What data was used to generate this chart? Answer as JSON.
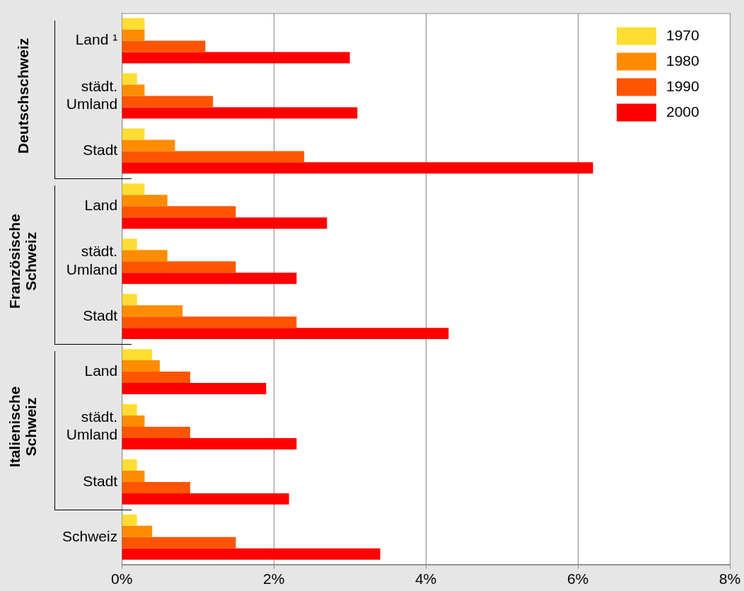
{
  "chart_data": {
    "type": "bar",
    "orientation": "horizontal",
    "categories": [
      "Land ¹",
      "städt.\nUmland",
      "Stadt",
      "Land",
      "städt.\nUmland",
      "Stadt",
      "Land",
      "städt.\nUmland",
      "Stadt",
      "Schweiz"
    ],
    "series": [
      {
        "name": "1970",
        "color": "#ffdd33",
        "values": [
          0.3,
          0.2,
          0.3,
          0.3,
          0.2,
          0.2,
          0.4,
          0.2,
          0.2,
          0.2
        ]
      },
      {
        "name": "1980",
        "color": "#ff8c00",
        "values": [
          0.3,
          0.3,
          0.7,
          0.6,
          0.6,
          0.8,
          0.5,
          0.3,
          0.3,
          0.4
        ]
      },
      {
        "name": "1990",
        "color": "#ff5500",
        "values": [
          1.1,
          1.2,
          2.4,
          1.5,
          1.5,
          2.3,
          0.9,
          0.9,
          0.9,
          1.5
        ]
      },
      {
        "name": "2000",
        "color": "#ff0000",
        "values": [
          3.0,
          3.1,
          6.2,
          2.7,
          2.3,
          4.3,
          1.9,
          2.3,
          2.2,
          3.4
        ]
      }
    ],
    "xlim": [
      0,
      8
    ],
    "xticks": [
      {
        "value": 0,
        "label": "0%"
      },
      {
        "value": 2,
        "label": "2%"
      },
      {
        "value": 4,
        "label": "4%"
      },
      {
        "value": 6,
        "label": "6%"
      },
      {
        "value": 8,
        "label": "8%"
      }
    ],
    "grid": "x",
    "legend": "top right",
    "annotations": [
      "Deutschschweiz",
      "Französische Schweiz",
      "Italienische Schweiz"
    ]
  }
}
